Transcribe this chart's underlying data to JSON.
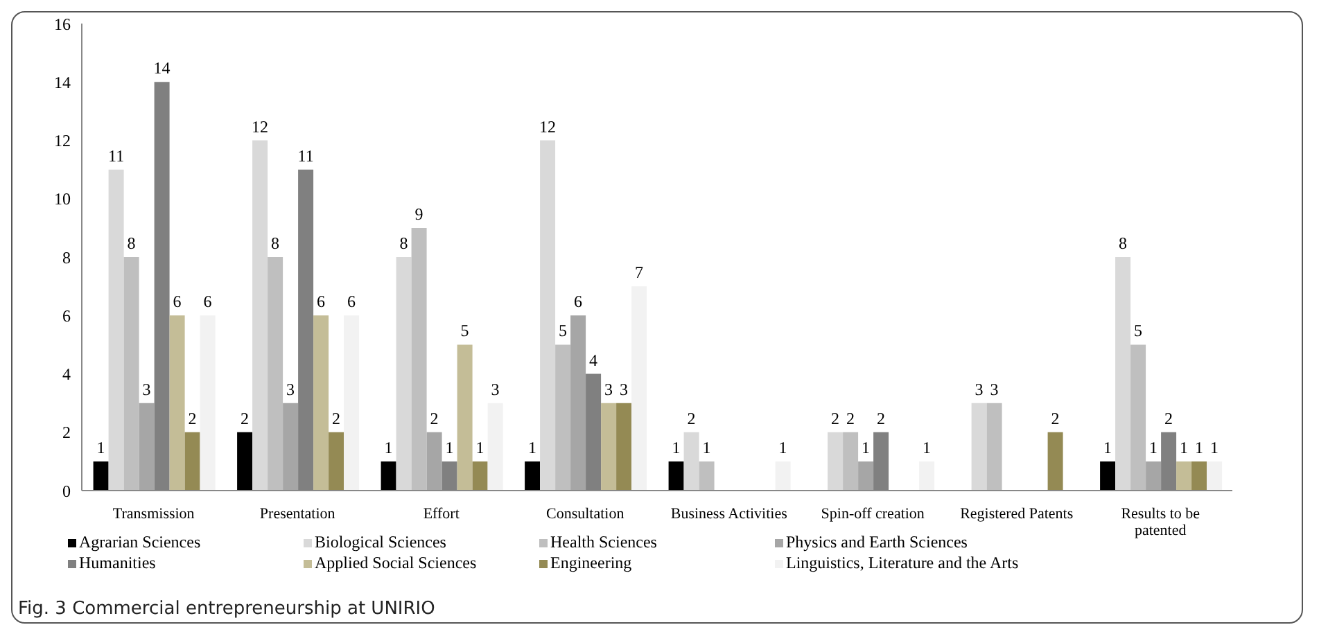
{
  "chart_data": {
    "type": "bar",
    "categories": [
      "Transmission",
      "Presentation",
      "Effort",
      "Consultation",
      "Business Activities",
      "Spin-off creation",
      "Registered Patents",
      "Results to be patented"
    ],
    "series": [
      {
        "name": "Agrarian Sciences",
        "color": "#000000",
        "values": [
          1,
          2,
          1,
          1,
          1,
          null,
          null,
          1
        ]
      },
      {
        "name": "Biological Sciences",
        "color": "#d9d9d9",
        "values": [
          11,
          12,
          8,
          12,
          2,
          2,
          3,
          8
        ]
      },
      {
        "name": "Health Sciences",
        "color": "#bfbfbf",
        "values": [
          8,
          8,
          9,
          5,
          1,
          2,
          3,
          5
        ]
      },
      {
        "name": "Physics and Earth Sciences",
        "color": "#a6a6a6",
        "values": [
          3,
          3,
          2,
          6,
          null,
          1,
          null,
          1
        ]
      },
      {
        "name": "Humanities",
        "color": "#808080",
        "values": [
          14,
          11,
          1,
          4,
          null,
          2,
          null,
          2
        ]
      },
      {
        "name": "Applied Social Sciences",
        "color": "#c4bd97",
        "values": [
          6,
          6,
          5,
          3,
          null,
          null,
          null,
          1
        ]
      },
      {
        "name": "Engineering",
        "color": "#948a54",
        "values": [
          2,
          2,
          1,
          3,
          null,
          null,
          2,
          1
        ]
      },
      {
        "name": "Linguistics, Literature and the Arts",
        "color": "#f2f2f2",
        "values": [
          6,
          6,
          3,
          7,
          1,
          1,
          null,
          1
        ]
      }
    ],
    "ylim": [
      0,
      16
    ],
    "yticks": [
      0,
      2,
      4,
      6,
      8,
      10,
      12,
      14,
      16
    ],
    "data_labels": true,
    "grid": false,
    "legend": "bottom",
    "annotations": [
      "Fig. 3 Commercial entrepreneurship at UNIRIO"
    ]
  }
}
